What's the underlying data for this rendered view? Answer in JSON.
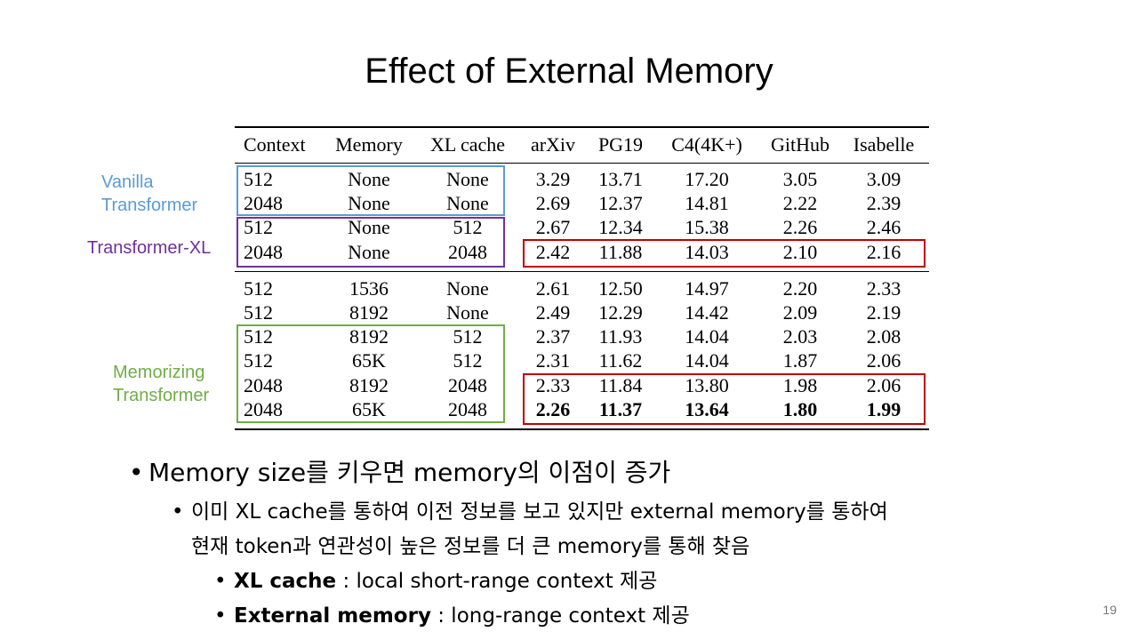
{
  "title": "Effect of External Memory",
  "table": {
    "headers": [
      "Context",
      "Memory",
      "XL cache",
      "arXiv",
      "PG19",
      "C4(4K+)",
      "GitHub",
      "Isabelle"
    ],
    "rows": [
      [
        "512",
        "None",
        "None",
        "3.29",
        "13.71",
        "17.20",
        "3.05",
        "3.09"
      ],
      [
        "2048",
        "None",
        "None",
        "2.69",
        "12.37",
        "14.81",
        "2.22",
        "2.39"
      ],
      [
        "512",
        "None",
        "512",
        "2.67",
        "12.34",
        "15.38",
        "2.26",
        "2.46"
      ],
      [
        "2048",
        "None",
        "2048",
        "2.42",
        "11.88",
        "14.03",
        "2.10",
        "2.16"
      ],
      [
        "512",
        "1536",
        "None",
        "2.61",
        "12.50",
        "14.97",
        "2.20",
        "2.33"
      ],
      [
        "512",
        "8192",
        "None",
        "2.49",
        "12.29",
        "14.42",
        "2.09",
        "2.19"
      ],
      [
        "512",
        "8192",
        "512",
        "2.37",
        "11.93",
        "14.04",
        "2.03",
        "2.08"
      ],
      [
        "512",
        "65K",
        "512",
        "2.31",
        "11.62",
        "14.04",
        "1.87",
        "2.06"
      ],
      [
        "2048",
        "8192",
        "2048",
        "2.33",
        "11.84",
        "13.80",
        "1.98",
        "2.06"
      ],
      [
        "2048",
        "65K",
        "2048",
        "2.26",
        "11.37",
        "13.64",
        "1.80",
        "1.99"
      ]
    ],
    "bold_row": 9
  },
  "group_labels": {
    "vanilla": [
      "Vanilla",
      "Transformer"
    ],
    "xl": "Transformer-XL",
    "memorizing": [
      "Memorizing",
      "Transformer"
    ]
  },
  "colors": {
    "vanilla": "#5b9bd5",
    "xl": "#7030a0",
    "memorizing": "#70ad47",
    "highlight": "#c00000"
  },
  "bullets": {
    "l1": "Memory size를 키우면 memory의 이점이 증가",
    "l2a": "이미 XL cache를 통하여 이전 정보를 보고 있지만 external memory를 통하여",
    "l2b": "현재 token과 연관성이 높은 정보를 더 큰 memory를 통해 찾음",
    "l3a_bold": "XL cache",
    "l3a_rest": " : local short-range context 제공",
    "l3b_bold": "External memory",
    "l3b_rest": " : long-range context 제공"
  },
  "page_number": "19"
}
